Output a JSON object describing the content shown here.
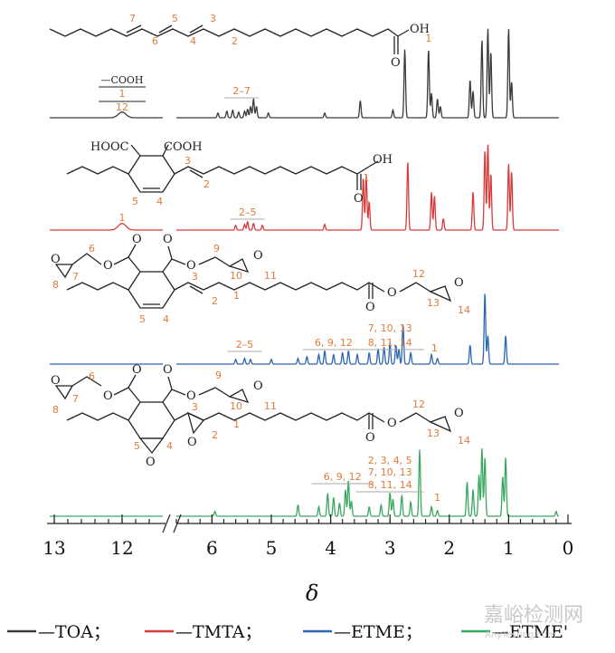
{
  "chart_data": {
    "type": "line",
    "title": "",
    "xlabel": "δ",
    "ylabel": "",
    "x_reversed": true,
    "x_break": [
      6.6,
      12.2
    ],
    "xlim": [
      0,
      13.5
    ],
    "ticks": [
      13,
      12,
      6,
      5,
      4,
      3,
      2,
      1,
      0
    ],
    "tick_labels": [
      "13",
      "12",
      "6",
      "5",
      "4",
      "3",
      "2",
      "1",
      "0"
    ],
    "series": [
      {
        "name": "TOA",
        "color": "#3a3a3a",
        "peaks": [
          [
            12.0,
            0.06
          ],
          [
            5.9,
            0.05
          ],
          [
            5.75,
            0.07
          ],
          [
            5.65,
            0.08
          ],
          [
            5.55,
            0.06
          ],
          [
            5.45,
            0.07
          ],
          [
            5.4,
            0.09
          ],
          [
            5.35,
            0.12
          ],
          [
            5.3,
            0.2
          ],
          [
            5.25,
            0.12
          ],
          [
            5.05,
            0.05
          ],
          [
            4.1,
            0.05
          ],
          [
            3.5,
            0.18
          ],
          [
            2.95,
            0.08
          ],
          [
            2.75,
            0.72
          ],
          [
            2.35,
            0.72
          ],
          [
            2.3,
            0.26
          ],
          [
            2.2,
            0.2
          ],
          [
            2.15,
            0.12
          ],
          [
            1.65,
            0.4
          ],
          [
            1.6,
            0.28
          ],
          [
            1.45,
            0.82
          ],
          [
            1.35,
            0.94
          ],
          [
            1.3,
            0.7
          ],
          [
            1.0,
            0.94
          ],
          [
            0.95,
            0.38
          ]
        ],
        "annotations": [
          {
            "label": "—COOH",
            "x": 12.0
          },
          {
            "label": "1",
            "x": 12.0
          },
          {
            "label": "12",
            "x": 12.0
          },
          {
            "label": "2–7",
            "x": 5.5
          },
          {
            "label": "1",
            "x": 2.35
          }
        ]
      },
      {
        "name": "TMTA",
        "color": "#d63a3a",
        "peaks": [
          [
            12.0,
            0.07
          ],
          [
            5.6,
            0.05
          ],
          [
            5.45,
            0.06
          ],
          [
            5.4,
            0.09
          ],
          [
            5.3,
            0.07
          ],
          [
            5.15,
            0.05
          ],
          [
            4.1,
            0.06
          ],
          [
            3.45,
            0.55
          ],
          [
            3.4,
            0.58
          ],
          [
            3.35,
            0.3
          ],
          [
            2.7,
            0.72
          ],
          [
            2.3,
            0.4
          ],
          [
            2.25,
            0.36
          ],
          [
            2.1,
            0.12
          ],
          [
            1.6,
            0.4
          ],
          [
            1.4,
            0.84
          ],
          [
            1.35,
            0.9
          ],
          [
            1.3,
            0.6
          ],
          [
            1.0,
            0.7
          ],
          [
            0.95,
            0.62
          ]
        ],
        "annotations": [
          {
            "label": "1",
            "x": 12.0
          },
          {
            "label": "2–5",
            "x": 5.4
          },
          {
            "label": "1",
            "x": 3.4
          }
        ]
      },
      {
        "name": "ETME",
        "color": "#2a66b0",
        "peaks": [
          [
            5.6,
            0.05
          ],
          [
            5.45,
            0.06
          ],
          [
            5.35,
            0.05
          ],
          [
            5.0,
            0.05
          ],
          [
            4.55,
            0.06
          ],
          [
            4.4,
            0.08
          ],
          [
            4.2,
            0.1
          ],
          [
            4.1,
            0.14
          ],
          [
            3.95,
            0.1
          ],
          [
            3.8,
            0.12
          ],
          [
            3.7,
            0.14
          ],
          [
            3.55,
            0.1
          ],
          [
            3.35,
            0.12
          ],
          [
            3.2,
            0.16
          ],
          [
            3.1,
            0.18
          ],
          [
            3.0,
            0.22
          ],
          [
            2.9,
            0.2
          ],
          [
            2.85,
            0.16
          ],
          [
            2.78,
            0.42
          ],
          [
            2.65,
            0.12
          ],
          [
            2.3,
            0.1
          ],
          [
            2.2,
            0.06
          ],
          [
            1.65,
            0.2
          ],
          [
            1.4,
            0.75
          ],
          [
            1.35,
            0.3
          ],
          [
            1.05,
            0.3
          ]
        ],
        "annotations": [
          {
            "label": "2–5",
            "x": 5.45
          },
          {
            "label": "6, 9, 12",
            "x": 3.95
          },
          {
            "label": "7, 10, 13",
            "x": 3.0
          },
          {
            "label": "8, 11, 14",
            "x": 3.0
          },
          {
            "label": "1",
            "x": 2.25
          }
        ]
      },
      {
        "name": "ETME'",
        "color": "#3aa75e",
        "peaks": [
          [
            5.95,
            0.05
          ],
          [
            4.55,
            0.12
          ],
          [
            4.2,
            0.1
          ],
          [
            4.05,
            0.24
          ],
          [
            3.95,
            0.2
          ],
          [
            3.85,
            0.14
          ],
          [
            3.75,
            0.28
          ],
          [
            3.7,
            0.38
          ],
          [
            3.65,
            0.16
          ],
          [
            3.35,
            0.1
          ],
          [
            3.15,
            0.12
          ],
          [
            3.0,
            0.25
          ],
          [
            2.95,
            0.18
          ],
          [
            2.8,
            0.22
          ],
          [
            2.65,
            0.15
          ],
          [
            2.5,
            0.7
          ],
          [
            2.3,
            0.1
          ],
          [
            2.2,
            0.06
          ],
          [
            1.7,
            0.36
          ],
          [
            1.6,
            0.28
          ],
          [
            1.5,
            0.44
          ],
          [
            1.45,
            0.72
          ],
          [
            1.4,
            0.62
          ],
          [
            1.1,
            0.42
          ],
          [
            1.05,
            0.62
          ],
          [
            0.2,
            0.05
          ]
        ],
        "annotations": [
          {
            "label": "6, 9, 12",
            "x": 3.8
          },
          {
            "label": "2, 3, 4, 5",
            "x": 3.0
          },
          {
            "label": "7, 10, 13",
            "x": 3.0
          },
          {
            "label": "8, 11, 14",
            "x": 3.0
          },
          {
            "label": "1",
            "x": 2.2
          }
        ]
      }
    ],
    "legend": [
      "—TOA；",
      "—TMTA；",
      "—ETME；",
      "—ETME'"
    ]
  },
  "structures": {
    "toa": {
      "oh": "OH",
      "o": "O",
      "nums": [
        "7",
        "6",
        "5",
        "4",
        "3",
        "2"
      ]
    },
    "tmta": {
      "hooc": "HOOC",
      "cooh": "COOH",
      "oh": "OH",
      "o": "O",
      "nums": [
        "5",
        "4",
        "3",
        "2"
      ]
    },
    "etme": {
      "o": "O",
      "nums": [
        "6",
        "7",
        "8",
        "9",
        "10",
        "11",
        "12",
        "13",
        "14",
        "5",
        "4",
        "3",
        "2",
        "1"
      ]
    },
    "etme2": {
      "o": "O",
      "nums": [
        "6",
        "7",
        "8",
        "9",
        "10",
        "11",
        "12",
        "13",
        "14",
        "5",
        "4",
        "3",
        "2",
        "1"
      ]
    }
  },
  "watermark": {
    "cn": "嘉峪检测网",
    "en": "AnyTesting.com"
  }
}
